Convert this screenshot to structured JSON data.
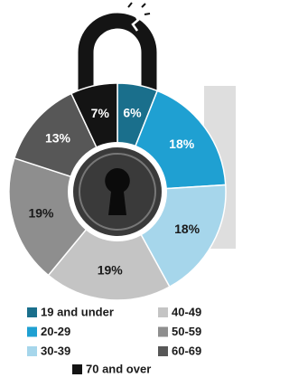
{
  "chart_data": {
    "type": "pie",
    "categories": [
      "19 and under",
      "20-29",
      "30-39",
      "40-49",
      "50-59",
      "60-69",
      "70 and over"
    ],
    "values": [
      6,
      18,
      18,
      19,
      19,
      13,
      7
    ],
    "value_labels": [
      "6%",
      "18%",
      "18%",
      "19%",
      "19%",
      "13%",
      "7%"
    ],
    "colors": [
      "#1a6f8c",
      "#1fa0d2",
      "#a6d6eb",
      "#c4c4c4",
      "#8e8e8e",
      "#575757",
      "#141414"
    ]
  }
}
